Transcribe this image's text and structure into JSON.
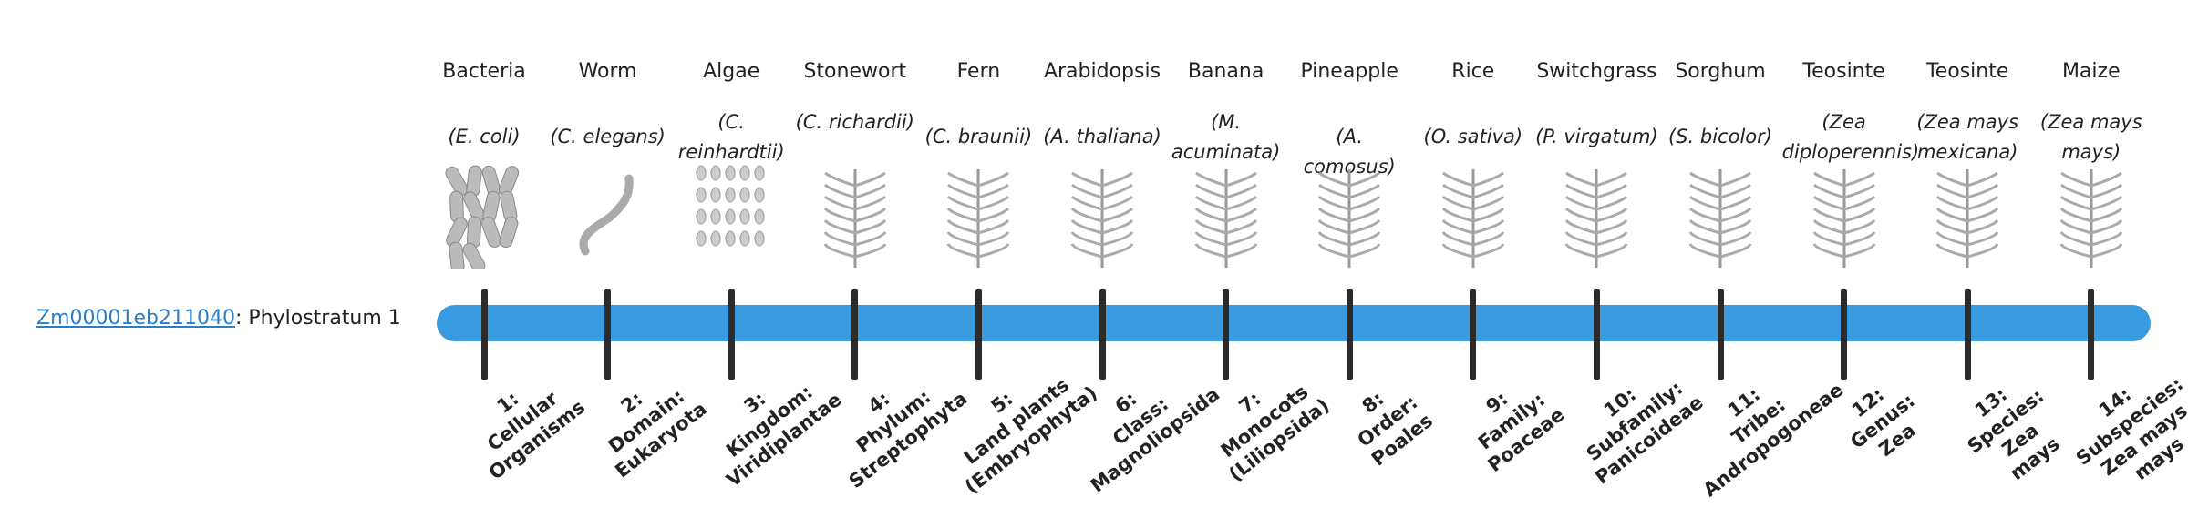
{
  "gene": {
    "id": "Zm00001eb211040",
    "label": ": Phylostratum 1"
  },
  "organisms": [
    {
      "name": "Bacteria",
      "scientific": "(E. coli)"
    },
    {
      "name": "Worm",
      "scientific": "(C. elegans)"
    },
    {
      "name": "Algae",
      "scientific": "(C. reinhardtii)"
    },
    {
      "name": "Stonewort",
      "scientific": "(C. richardii)"
    },
    {
      "name": "Fern",
      "scientific": "(C. braunii)"
    },
    {
      "name": "Arabidopsis",
      "scientific": "(A. thaliana)"
    },
    {
      "name": "Banana",
      "scientific": "(M. acuminata)"
    },
    {
      "name": "Pineapple",
      "scientific": "(A. comosus)"
    },
    {
      "name": "Rice",
      "scientific": "(O. sativa)"
    },
    {
      "name": "Switchgrass",
      "scientific": "(P. virgatum)"
    },
    {
      "name": "Sorghum",
      "scientific": "(S. bicolor)"
    },
    {
      "name": "Teosinte",
      "scientific": "(Zea diploperennis)"
    },
    {
      "name": "Teosinte",
      "scientific": "(Zea mays mexicana)"
    },
    {
      "name": "Maize",
      "scientific": "(Zea mays mays)"
    }
  ],
  "strata": [
    [
      "1:",
      "Cellular",
      "Organisms"
    ],
    [
      "2:",
      "Domain:",
      "Eukaryota"
    ],
    [
      "3:",
      "Kingdom:",
      "Viridiplantae"
    ],
    [
      "4:",
      "Phylum:",
      "Streptophyta"
    ],
    [
      "5:",
      "Land plants",
      "(Embryophyta)"
    ],
    [
      "6:",
      "Class:",
      "Magnoliopsida"
    ],
    [
      "7:",
      "Monocots",
      "(Liliopsida)"
    ],
    [
      "8:",
      "Order:",
      "Poales"
    ],
    [
      "9:",
      "Family:",
      "Poaceae"
    ],
    [
      "10:",
      "Subfamily:",
      "Panicoideae"
    ],
    [
      "11:",
      "Tribe:",
      "Andropogoneae"
    ],
    [
      "12:",
      "Genus:",
      "Zea"
    ],
    [
      "13:",
      "Species:",
      "Zea",
      "mays"
    ],
    [
      "14:",
      "Subspecies:",
      "Zea mays",
      "mays"
    ]
  ]
}
